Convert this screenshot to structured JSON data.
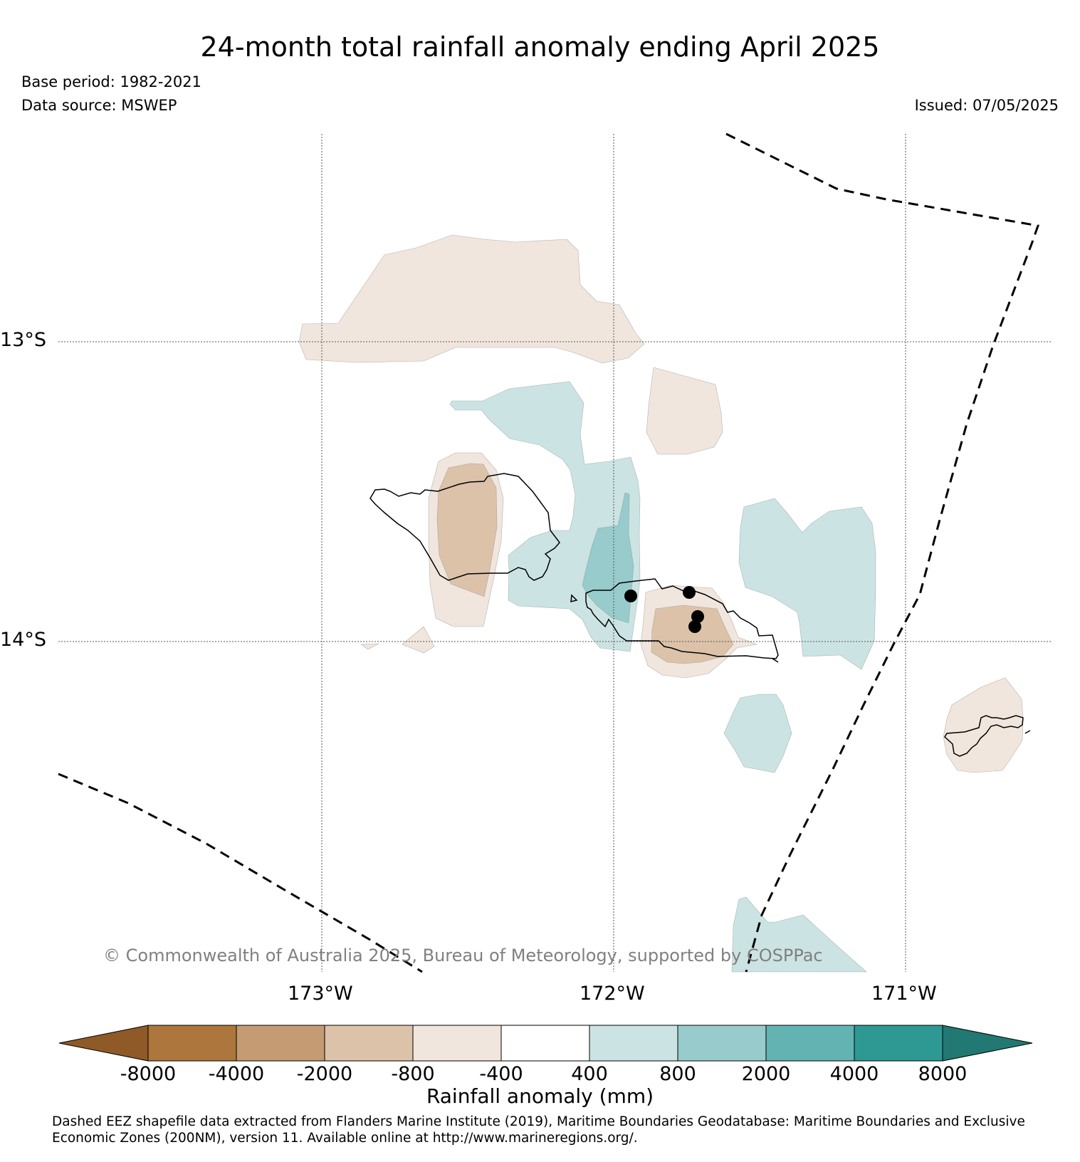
{
  "title": "24-month total rainfall anomaly ending April 2025",
  "base_period": "Base period: 1982-2021",
  "data_source": "Data source: MSWEP",
  "issued": "Issued: 07/05/2025",
  "copyright": "© Commonwealth of Australia 2025, Bureau of Meteorology, supported by COSPPac",
  "lat_labels": [
    "13°S",
    "14°S"
  ],
  "lon_labels": [
    "173°W",
    "172°W",
    "171°W"
  ],
  "colorbar": {
    "label": "Rainfall anomaly (mm)",
    "ticks": [
      "-8000",
      "-4000",
      "-2000",
      "-800",
      "-400",
      "400",
      "800",
      "2000",
      "4000",
      "8000"
    ],
    "colors": [
      "#8f5a28",
      "#ad763c",
      "#c49b72",
      "#dbc2a9",
      "#f0e6dd",
      "#ffffff",
      "#cbe4e3",
      "#98cbcb",
      "#63b3b3",
      "#2e9993",
      "#227872"
    ]
  },
  "contour_colors": {
    "dry_light": "#f0e6dd",
    "dry_medium": "#dbc2a9",
    "wet_light": "#cbe4e3",
    "wet_medium": "#98cbcb"
  },
  "features": {
    "eez_boundary": "dashed",
    "gridlines": "dotted",
    "coastline": "solid"
  },
  "footer": {
    "line1": "Dashed EEZ shapefile data extracted from Flanders Marine Institute (2019), Maritime Boundaries Geodatabase: Maritime Boundaries and Exclusive",
    "line2": "Economic Zones (200NM), version 11. Available online at http://www.marineregions.org/."
  }
}
